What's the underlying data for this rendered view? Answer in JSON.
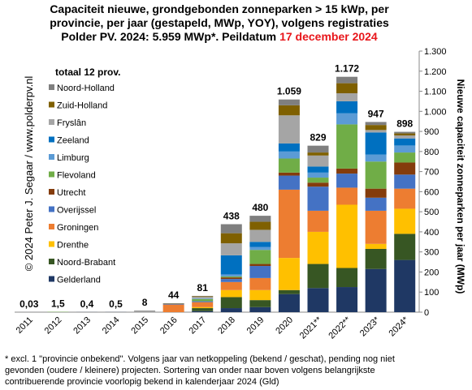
{
  "chart_data": {
    "type": "stacked-bar",
    "title_lines": [
      "Capaciteit nieuwe, grondgebonden  zonneparken  > 15 kWp, per",
      "provincie, per jaar (gestapeld, MWp, YOY), volgens registraties",
      "Polder PV. 2024: 5.959 MWp*. Peildatum"
    ],
    "title_date": "17 december 2024",
    "title_date_color": "#e8161b",
    "y_label": "Nieuwe capaciteit zonneparken per jaar (MWp)",
    "watermark": "© 2024 Peter J. Segaar / www.polderpv.nl",
    "legend_title": "totaal 12 prov.",
    "footnote": [
      "* excl. 1 \"provincie onbekend\". Volgens jaar van netkoppeling (bekend / geschat), pending nog niet",
      "gevonden (oudere / kleinere) projecten. Sortering van onder naar boven volgens belangrijkste",
      "contribuerende provincie voorlopig bekend in kalenderjaar 2024 (Gld)"
    ],
    "categories": [
      "2011",
      "2012",
      "2013",
      "2014",
      "2015",
      "2016",
      "2017",
      "2018",
      "2019",
      "2020",
      "2021**",
      "2022**",
      "2023*",
      "2024*"
    ],
    "series": [
      {
        "name": "Gelderland",
        "color": "#1f3864",
        "values": [
          0.03,
          0,
          0.4,
          0.5,
          0,
          0,
          5,
          20,
          25,
          90,
          120,
          125,
          215,
          260
        ]
      },
      {
        "name": "Noord-Brabant",
        "color": "#375623",
        "values": [
          0,
          0,
          0,
          0,
          0,
          0,
          15,
          55,
          35,
          20,
          120,
          95,
          100,
          130
        ]
      },
      {
        "name": "Drenthe",
        "color": "#ffc000",
        "values": [
          0,
          0,
          0,
          0,
          0,
          0,
          5,
          35,
          50,
          160,
          160,
          315,
          25,
          125
        ]
      },
      {
        "name": "Groningen",
        "color": "#ed7d31",
        "values": [
          0,
          0,
          0,
          0,
          0,
          38,
          25,
          40,
          60,
          340,
          105,
          85,
          165,
          100
        ]
      },
      {
        "name": "Overijssel",
        "color": "#4472c4",
        "values": [
          0,
          0,
          0,
          0,
          0,
          4,
          5,
          15,
          60,
          70,
          120,
          70,
          65,
          70
        ]
      },
      {
        "name": "Utrecht",
        "color": "#843c0c",
        "values": [
          0,
          0,
          0,
          0,
          0,
          0,
          0,
          8,
          10,
          15,
          20,
          25,
          45,
          60
        ]
      },
      {
        "name": "Flevoland",
        "color": "#70ad47",
        "values": [
          0,
          1.5,
          0,
          0,
          0,
          0,
          10,
          5,
          70,
          70,
          25,
          220,
          135,
          50
        ]
      },
      {
        "name": "Limburg",
        "color": "#5b9bd5",
        "values": [
          0,
          0,
          0,
          0,
          0,
          0,
          3,
          10,
          15,
          35,
          25,
          55,
          35,
          35
        ]
      },
      {
        "name": "Zeeland",
        "color": "#0070c0",
        "values": [
          0,
          0,
          0,
          0,
          0,
          0,
          0,
          95,
          25,
          40,
          30,
          60,
          110,
          35
        ]
      },
      {
        "name": "Fryslân",
        "color": "#a5a5a5",
        "values": [
          0,
          0,
          0,
          0,
          6,
          0,
          8,
          60,
          60,
          140,
          55,
          40,
          12,
          15
        ]
      },
      {
        "name": "Zuid-Holland",
        "color": "#7f6000",
        "values": [
          0,
          0,
          0,
          0,
          0,
          2,
          3,
          50,
          40,
          50,
          15,
          50,
          25,
          10
        ]
      },
      {
        "name": "Noord-Holland",
        "color": "#7f7f7f",
        "values": [
          0,
          0,
          0,
          0,
          2,
          0,
          2,
          45,
          30,
          29,
          34,
          32,
          15,
          8
        ]
      }
    ],
    "totals": {
      "values": [
        0.03,
        1.5,
        0.4,
        0.5,
        8,
        44,
        81,
        438,
        480,
        1059,
        829,
        1172,
        947,
        898
      ],
      "value_labels": [
        "0,03",
        "1,5",
        "0,4",
        "0,5",
        "8",
        "44",
        "81",
        "438",
        "480",
        "1.059",
        "829",
        "1.172",
        "947",
        "898"
      ]
    },
    "ylim": [
      0,
      1300
    ],
    "yticks": [
      0,
      100,
      200,
      300,
      400,
      500,
      600,
      700,
      800,
      900,
      {
        "value": 1000,
        "label": "1.000"
      },
      {
        "value": 1100,
        "label": "1.100"
      },
      {
        "value": 1200,
        "label": "1.200"
      },
      {
        "value": 1300,
        "label": "1.300"
      }
    ],
    "grid": false
  }
}
